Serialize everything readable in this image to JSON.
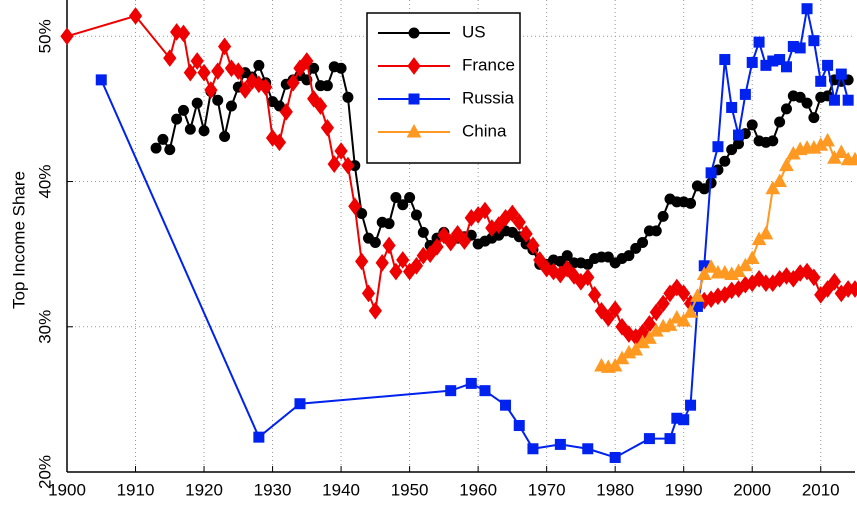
{
  "chart_data": {
    "type": "line",
    "y_label": "Top Income Share",
    "xlim": [
      1900,
      2015
    ],
    "ylim": [
      20,
      52.5
    ],
    "xticks": [
      1900,
      1910,
      1920,
      1930,
      1940,
      1950,
      1960,
      1970,
      1980,
      1990,
      2000,
      2010
    ],
    "yticks": [
      {
        "value": 20,
        "label": "20%"
      },
      {
        "value": 30,
        "label": "30%"
      },
      {
        "value": 40,
        "label": "40%"
      },
      {
        "value": 50,
        "label": "50%"
      }
    ],
    "grid": true,
    "legend": "top",
    "series": [
      {
        "name": "US",
        "color": "#000000",
        "marker": "circle",
        "x": [
          1913,
          1914,
          1915,
          1916,
          1917,
          1918,
          1919,
          1920,
          1921,
          1922,
          1923,
          1924,
          1925,
          1926,
          1927,
          1928,
          1929,
          1930,
          1931,
          1932,
          1933,
          1934,
          1935,
          1936,
          1937,
          1938,
          1939,
          1940,
          1941,
          1942,
          1943,
          1944,
          1945,
          1946,
          1947,
          1948,
          1949,
          1950,
          1951,
          1952,
          1953,
          1954,
          1955,
          1956,
          1957,
          1958,
          1959,
          1960,
          1961,
          1962,
          1963,
          1964,
          1965,
          1966,
          1967,
          1968,
          1969,
          1970,
          1971,
          1972,
          1973,
          1974,
          1975,
          1976,
          1977,
          1978,
          1979,
          1980,
          1981,
          1982,
          1983,
          1984,
          1985,
          1986,
          1987,
          1988,
          1989,
          1990,
          1991,
          1992,
          1993,
          1994,
          1995,
          1996,
          1997,
          1998,
          1999,
          2000,
          2001,
          2002,
          2003,
          2004,
          2005,
          2006,
          2007,
          2008,
          2009,
          2010,
          2011,
          2012,
          2013,
          2014
        ],
        "values": [
          42.3,
          42.9,
          42.2,
          44.3,
          44.9,
          43.6,
          45.4,
          43.5,
          46.2,
          45.6,
          43.1,
          45.2,
          46.5,
          47.5,
          47.2,
          48.0,
          46.8,
          45.5,
          45.2,
          46.7,
          47.0,
          47.3,
          47.0,
          47.8,
          46.6,
          46.6,
          47.9,
          47.8,
          45.8,
          41.1,
          37.8,
          36.1,
          35.8,
          37.2,
          37.1,
          38.9,
          38.4,
          38.9,
          37.7,
          36.5,
          35.6,
          36.1,
          36.5,
          35.9,
          36.1,
          36.2,
          36.3,
          35.7,
          35.9,
          36.1,
          36.3,
          36.6,
          36.5,
          36.2,
          35.7,
          35.3,
          34.3,
          34.3,
          34.6,
          34.5,
          34.9,
          34.4,
          34.4,
          34.3,
          34.7,
          34.8,
          34.8,
          34.4,
          34.7,
          34.9,
          35.4,
          35.8,
          36.6,
          36.6,
          37.6,
          38.8,
          38.6,
          38.6,
          38.5,
          39.7,
          39.5,
          39.9,
          40.8,
          41.4,
          42.2,
          42.6,
          43.3,
          43.9,
          42.8,
          42.7,
          42.8,
          44.1,
          45.0,
          45.9,
          45.8,
          45.4,
          44.4,
          45.8,
          45.9,
          47.0,
          46.9,
          47.0
        ]
      },
      {
        "name": "France",
        "color": "#ee0000",
        "marker": "diamond",
        "x": [
          1900,
          1910,
          1915,
          1916,
          1917,
          1918,
          1919,
          1920,
          1921,
          1922,
          1923,
          1924,
          1925,
          1926,
          1927,
          1928,
          1929,
          1930,
          1931,
          1932,
          1933,
          1934,
          1935,
          1936,
          1937,
          1938,
          1939,
          1940,
          1941,
          1942,
          1943,
          1944,
          1945,
          1946,
          1947,
          1948,
          1949,
          1950,
          1951,
          1952,
          1953,
          1954,
          1955,
          1956,
          1957,
          1958,
          1959,
          1960,
          1961,
          1962,
          1963,
          1964,
          1965,
          1966,
          1967,
          1968,
          1969,
          1970,
          1971,
          1972,
          1973,
          1974,
          1975,
          1976,
          1977,
          1978,
          1979,
          1980,
          1981,
          1982,
          1983,
          1984,
          1985,
          1986,
          1987,
          1988,
          1989,
          1990,
          1991,
          1992,
          1993,
          1994,
          1995,
          1996,
          1997,
          1998,
          1999,
          2000,
          2001,
          2002,
          2003,
          2004,
          2005,
          2006,
          2007,
          2008,
          2009,
          2010,
          2011,
          2012,
          2013,
          2014,
          2015
        ],
        "values": [
          50.0,
          51.4,
          48.5,
          50.3,
          50.2,
          47.5,
          48.3,
          47.5,
          46.3,
          47.6,
          49.3,
          47.8,
          47.6,
          46.3,
          46.9,
          46.7,
          46.5,
          43.0,
          42.7,
          44.8,
          46.8,
          47.8,
          48.3,
          45.7,
          45.2,
          43.7,
          41.2,
          42.1,
          41.1,
          38.3,
          34.5,
          32.3,
          31.1,
          34.4,
          35.6,
          33.8,
          34.6,
          33.8,
          34.2,
          34.9,
          35.0,
          35.5,
          36.3,
          35.8,
          36.4,
          35.9,
          37.5,
          37.7,
          38.0,
          36.8,
          37.0,
          37.5,
          37.8,
          37.2,
          36.4,
          35.6,
          34.6,
          34.0,
          33.8,
          33.6,
          34.0,
          33.5,
          33.1,
          33.4,
          32.2,
          31.1,
          30.6,
          31.2,
          30.0,
          29.5,
          29.3,
          29.6,
          30.2,
          31.0,
          31.6,
          32.3,
          32.7,
          32.3,
          31.6,
          31.8,
          31.8,
          31.9,
          32.1,
          32.2,
          32.5,
          32.6,
          32.9,
          33.0,
          33.3,
          33.0,
          33.0,
          33.3,
          33.5,
          33.3,
          33.7,
          33.8,
          33.4,
          32.2,
          32.6,
          33.1,
          32.3,
          32.6,
          32.6
        ]
      },
      {
        "name": "Russia",
        "color": "#0022ee",
        "marker": "square",
        "x": [
          1905,
          1928,
          1934,
          1956,
          1959,
          1961,
          1964,
          1966,
          1968,
          1972,
          1976,
          1980,
          1985,
          1988,
          1989,
          1990,
          1991,
          1992,
          1993,
          1994,
          1995,
          1996,
          1997,
          1998,
          1999,
          2000,
          2001,
          2002,
          2003,
          2004,
          2005,
          2006,
          2007,
          2008,
          2009,
          2010,
          2011,
          2012,
          2013,
          2014
        ],
        "values": [
          47.0,
          22.4,
          24.7,
          25.6,
          26.1,
          25.6,
          24.6,
          23.2,
          21.6,
          21.9,
          21.6,
          21.0,
          22.3,
          22.3,
          23.7,
          23.6,
          24.6,
          31.4,
          34.2,
          40.6,
          42.4,
          48.4,
          45.1,
          43.2,
          46.0,
          48.2,
          49.6,
          48.0,
          48.3,
          48.4,
          47.9,
          49.3,
          49.2,
          51.9,
          49.7,
          46.9,
          48.0,
          45.6,
          47.4,
          45.6
        ]
      },
      {
        "name": "China",
        "color": "#ff9922",
        "marker": "triangle",
        "x": [
          1978,
          1979,
          1980,
          1981,
          1982,
          1983,
          1984,
          1985,
          1986,
          1987,
          1988,
          1989,
          1990,
          1991,
          1992,
          1993,
          1994,
          1995,
          1996,
          1997,
          1998,
          1999,
          2000,
          2001,
          2002,
          2003,
          2004,
          2005,
          2006,
          2007,
          2008,
          2009,
          2010,
          2011,
          2012,
          2013,
          2014,
          2015
        ],
        "values": [
          27.3,
          27.2,
          27.3,
          27.8,
          28.2,
          28.4,
          28.9,
          29.2,
          29.7,
          30.0,
          30.1,
          30.6,
          30.4,
          31.0,
          32.1,
          33.6,
          34.1,
          33.7,
          33.7,
          33.6,
          33.8,
          34.2,
          34.7,
          36.0,
          36.4,
          39.5,
          40.0,
          41.1,
          41.9,
          42.2,
          42.3,
          42.3,
          42.5,
          42.8,
          41.6,
          42.0,
          41.5,
          41.5
        ]
      }
    ]
  }
}
